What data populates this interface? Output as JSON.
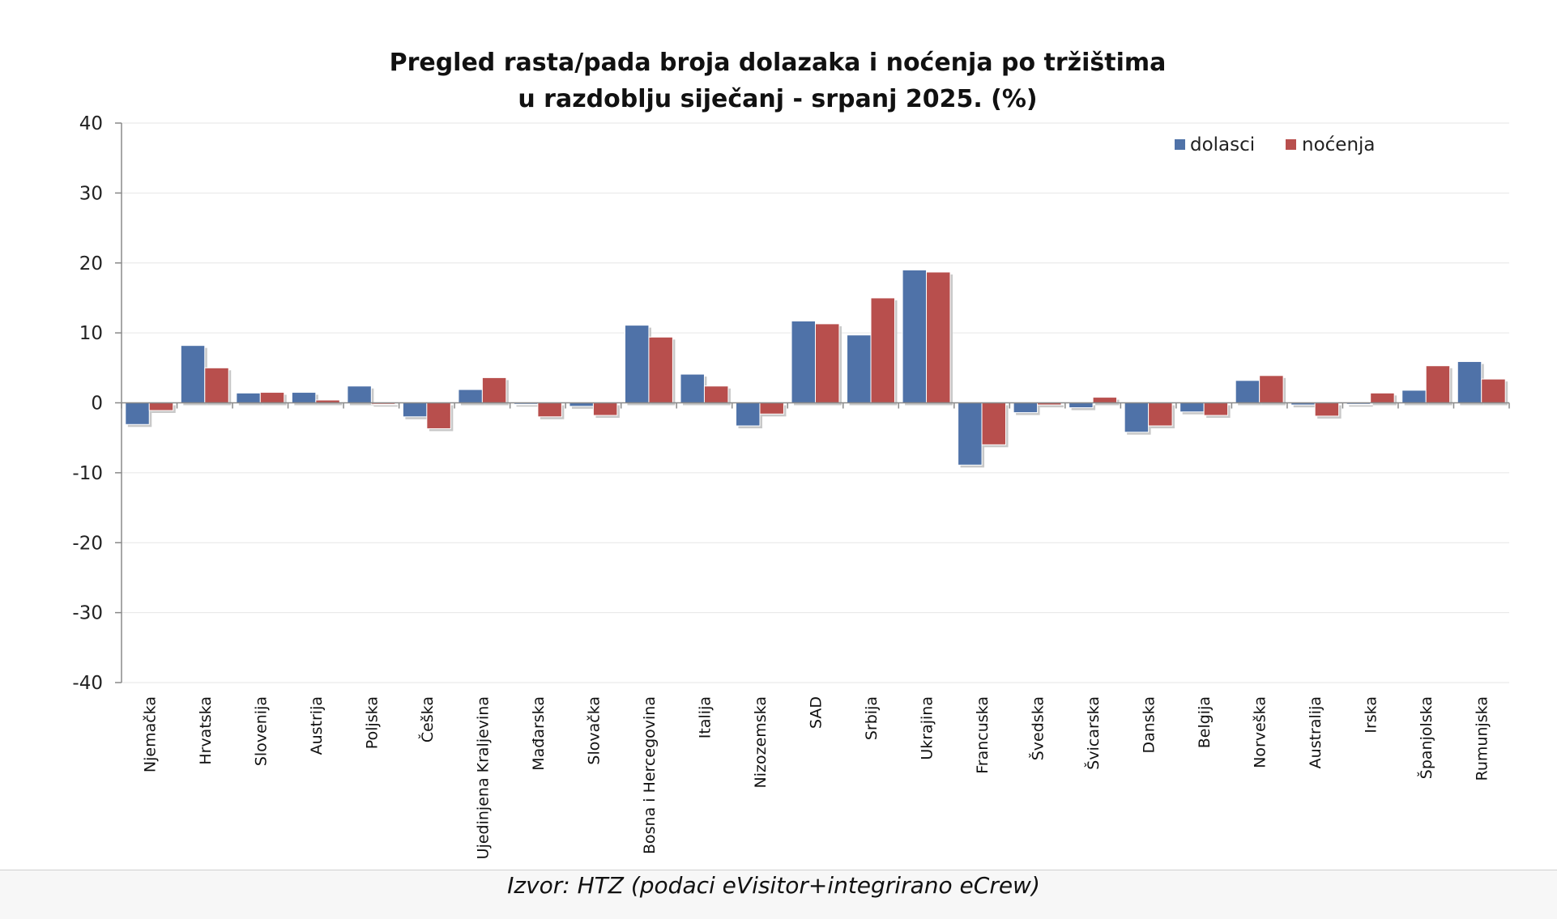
{
  "chart_data": {
    "type": "bar",
    "title_line1": "Pregled rasta/pada broja dolazaka i noćenja po tržištima",
    "title_line2": "u razdoblju siječanj - srpanj 2025. (%)",
    "xlabel": "",
    "ylabel": "",
    "ylim": [
      -40,
      40
    ],
    "yticks": [
      40,
      30,
      20,
      10,
      0,
      -10,
      -20,
      -30,
      -40
    ],
    "grid": true,
    "legend_position": "top-right",
    "categories": [
      "Njemačka",
      "Hrvatska",
      "Slovenija",
      "Austrija",
      "Poljska",
      "Češka",
      "Ujedinjena Kraljevina",
      "Mađarska",
      "Slovačka",
      "Bosna i Hercegovina",
      "Italija",
      "Nizozemska",
      "SAD",
      "Srbija",
      "Ukrajina",
      "Francuska",
      "Švedska",
      "Švicarska",
      "Danska",
      "Belgija",
      "Norveška",
      "Australija",
      "Irska",
      "Španjolska",
      "Rumunjska"
    ],
    "series": [
      {
        "name": "dolasci",
        "color": "#4f72a8",
        "values": [
          -3.1,
          8.2,
          1.4,
          1.5,
          2.4,
          -2.0,
          1.9,
          -0.2,
          -0.5,
          11.1,
          4.1,
          -3.3,
          11.7,
          9.7,
          19.0,
          -8.9,
          -1.4,
          -0.7,
          -4.2,
          -1.3,
          3.2,
          -0.3,
          -0.2,
          1.8,
          5.9
        ]
      },
      {
        "name": "noćenja",
        "color": "#b84f4d",
        "values": [
          -1.1,
          5.0,
          1.5,
          0.4,
          -0.2,
          -3.7,
          3.6,
          -2.0,
          -1.8,
          9.4,
          2.4,
          -1.6,
          11.3,
          15.0,
          18.7,
          -6.0,
          -0.3,
          0.8,
          -3.3,
          -1.8,
          3.9,
          -1.9,
          1.4,
          5.3,
          3.4
        ]
      }
    ]
  },
  "source": "Izvor: HTZ (podaci eVisitor+integrirano eCrew)"
}
